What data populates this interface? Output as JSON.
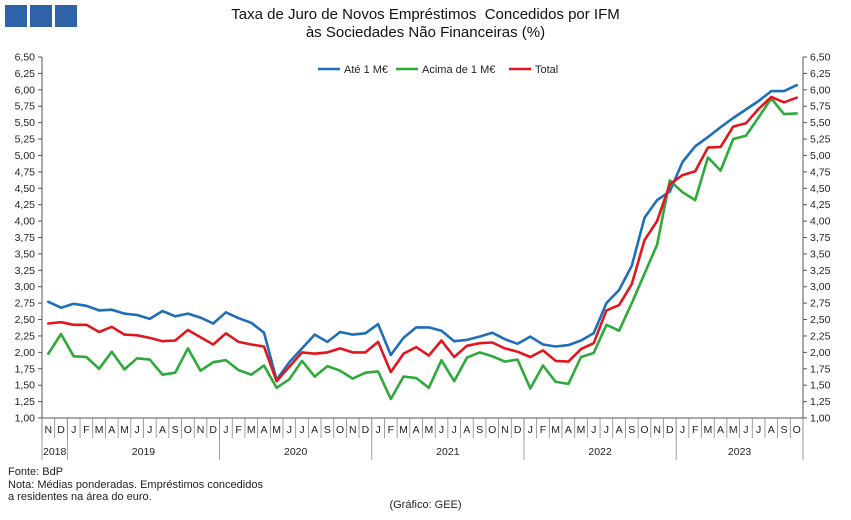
{
  "title_line1": "Taxa de Juro de Novos Empréstimos  Concedidos por IFM",
  "title_line2": "às Sociedades Não Financeiras (%)",
  "source": "Fonte: BdP",
  "note_line1": "Nota: Médias ponderadas. Empréstimos concedidos",
  "note_line2": "a residentes na área do euro.",
  "credit": "(Gráfico: GEE)",
  "chart_data": {
    "type": "line",
    "title": "Taxa de Juro de Novos Empréstimos Concedidos por IFM às Sociedades Não Financeiras (%)",
    "ylim": [
      1.0,
      6.5
    ],
    "yticks": [
      "1,00",
      "1,25",
      "1,50",
      "1,75",
      "2,00",
      "2,25",
      "2,50",
      "2,75",
      "3,00",
      "3,25",
      "3,50",
      "3,75",
      "4,00",
      "4,25",
      "4,50",
      "4,75",
      "5,00",
      "5,25",
      "5,50",
      "5,75",
      "6,00",
      "6,25",
      "6,50"
    ],
    "grid": false,
    "legend_position": "top-center",
    "month_labels": [
      "N",
      "D",
      "J",
      "F",
      "M",
      "A",
      "M",
      "J",
      "J",
      "A",
      "S",
      "O",
      "N",
      "D",
      "J",
      "F",
      "M",
      "A",
      "M",
      "J",
      "J",
      "A",
      "S",
      "O",
      "N",
      "D",
      "J",
      "F",
      "M",
      "A",
      "M",
      "J",
      "J",
      "A",
      "S",
      "O",
      "N",
      "D",
      "J",
      "F",
      "M",
      "A",
      "M",
      "J",
      "J",
      "A",
      "S",
      "O",
      "N",
      "D",
      "J",
      "F",
      "M",
      "A",
      "M",
      "J",
      "J",
      "A",
      "S",
      "O"
    ],
    "year_labels": [
      {
        "label": "2018",
        "start": 0,
        "count": 2
      },
      {
        "label": "2019",
        "start": 2,
        "count": 12
      },
      {
        "label": "2020",
        "start": 14,
        "count": 12
      },
      {
        "label": "2021",
        "start": 26,
        "count": 12
      },
      {
        "label": "2022",
        "start": 38,
        "count": 12
      },
      {
        "label": "2023",
        "start": 50,
        "count": 10
      }
    ],
    "series": [
      {
        "name": "Até 1 M€",
        "color": "#1f6fb8",
        "values": [
          2.77,
          2.68,
          2.74,
          2.71,
          2.64,
          2.65,
          2.59,
          2.57,
          2.51,
          2.63,
          2.55,
          2.59,
          2.53,
          2.44,
          2.61,
          2.52,
          2.45,
          2.3,
          1.58,
          1.85,
          2.06,
          2.27,
          2.16,
          2.31,
          2.27,
          2.29,
          2.43,
          1.96,
          2.22,
          2.38,
          2.38,
          2.33,
          2.17,
          2.19,
          2.24,
          2.3,
          2.2,
          2.13,
          2.24,
          2.12,
          2.09,
          2.11,
          2.18,
          2.29,
          2.75,
          2.95,
          3.32,
          4.05,
          4.32,
          4.45,
          4.9,
          5.14,
          5.28,
          5.43,
          5.57,
          5.7,
          5.83,
          5.98,
          5.98,
          6.07
        ]
      },
      {
        "name": "Acima de 1 M€",
        "color": "#2eaa3a",
        "values": [
          1.98,
          2.28,
          1.94,
          1.93,
          1.75,
          2.01,
          1.74,
          1.91,
          1.89,
          1.66,
          1.69,
          2.06,
          1.72,
          1.85,
          1.88,
          1.73,
          1.66,
          1.8,
          1.46,
          1.59,
          1.87,
          1.63,
          1.79,
          1.72,
          1.6,
          1.69,
          1.71,
          1.29,
          1.63,
          1.61,
          1.46,
          1.88,
          1.56,
          1.92,
          2.0,
          1.94,
          1.86,
          1.89,
          1.45,
          1.8,
          1.55,
          1.52,
          1.93,
          1.99,
          2.42,
          2.33,
          2.75,
          3.2,
          3.64,
          4.62,
          4.44,
          4.32,
          4.97,
          4.77,
          5.25,
          5.3,
          5.58,
          5.87,
          5.63,
          5.64
        ]
      },
      {
        "name": "Total",
        "color": "#e0171f",
        "values": [
          2.44,
          2.46,
          2.42,
          2.42,
          2.31,
          2.39,
          2.27,
          2.26,
          2.22,
          2.17,
          2.18,
          2.34,
          2.23,
          2.12,
          2.29,
          2.16,
          2.12,
          2.09,
          1.56,
          1.78,
          2.0,
          1.98,
          2.0,
          2.06,
          2.0,
          2.0,
          2.16,
          1.7,
          1.98,
          2.08,
          1.95,
          2.18,
          1.93,
          2.1,
          2.14,
          2.15,
          2.06,
          2.01,
          1.93,
          2.03,
          1.87,
          1.86,
          2.05,
          2.14,
          2.64,
          2.72,
          3.04,
          3.71,
          4.0,
          4.56,
          4.7,
          4.76,
          5.12,
          5.13,
          5.44,
          5.49,
          5.71,
          5.89,
          5.81,
          5.88
        ]
      }
    ]
  }
}
